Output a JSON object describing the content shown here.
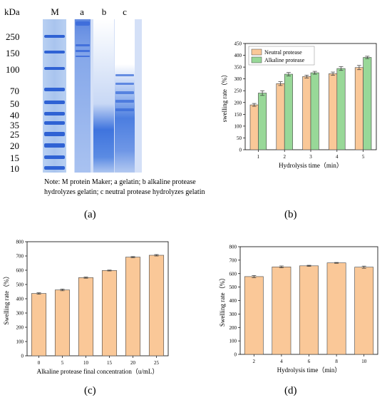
{
  "gel": {
    "unit": "kDa",
    "lanes": [
      "M",
      "a",
      "b",
      "c"
    ],
    "markers": [
      "250",
      "150",
      "100",
      "70",
      "50",
      "40",
      "35",
      "25",
      "20",
      "15",
      "10"
    ],
    "note": "Note: M protein Maker; a gelatin; b alkaline protease hydrolyzes gelatin; c neutral protease hydrolyzes gelatin",
    "panel_label": "(a)"
  },
  "chart_data": [
    {
      "panel_label": "(b)",
      "type": "bar",
      "xlabel": "Hydrolysis time（min）",
      "ylabel": "swelling rate（%）",
      "categories": [
        "1",
        "2",
        "3",
        "4",
        "5"
      ],
      "ylim": [
        0,
        450
      ],
      "yticks": [
        "0",
        "50",
        "100",
        "150",
        "200",
        "250",
        "300",
        "350",
        "400",
        "450"
      ],
      "legend_position": "top-left",
      "series": [
        {
          "name": "Neutral protease",
          "color": "#fac898",
          "values": [
            190,
            280,
            310,
            322,
            348
          ],
          "errors": [
            6,
            8,
            6,
            7,
            9
          ]
        },
        {
          "name": "Alkaline protease",
          "color": "#98d898",
          "values": [
            240,
            320,
            326,
            344,
            391
          ],
          "errors": [
            10,
            7,
            6,
            8,
            5
          ]
        }
      ]
    },
    {
      "panel_label": "(c)",
      "type": "bar",
      "xlabel": "Alkaline protease final concentration（u/mL）",
      "ylabel": "Swelling rate（%）",
      "categories": [
        "0",
        "5",
        "10",
        "15",
        "20",
        "25"
      ],
      "ylim": [
        0,
        800
      ],
      "yticks": [
        "0",
        "100",
        "200",
        "300",
        "400",
        "500",
        "600",
        "700",
        "800"
      ],
      "series": [
        {
          "color": "#fac898",
          "values": [
            437,
            462,
            548,
            598,
            692,
            705
          ],
          "errors": [
            5,
            6,
            4,
            3,
            4,
            5
          ]
        }
      ]
    },
    {
      "panel_label": "(d)",
      "type": "bar",
      "xlabel": "Hydrolysis time（min）",
      "ylabel": "Swelling rate（%）",
      "categories": [
        "2",
        "4",
        "6",
        "8",
        "10"
      ],
      "ylim": [
        0,
        800
      ],
      "yticks": [
        "0",
        "100",
        "200",
        "300",
        "400",
        "500",
        "600",
        "700",
        "800"
      ],
      "series": [
        {
          "color": "#fac898",
          "values": [
            578,
            650,
            658,
            680,
            648
          ],
          "errors": [
            8,
            7,
            4,
            3,
            8
          ]
        }
      ]
    }
  ]
}
